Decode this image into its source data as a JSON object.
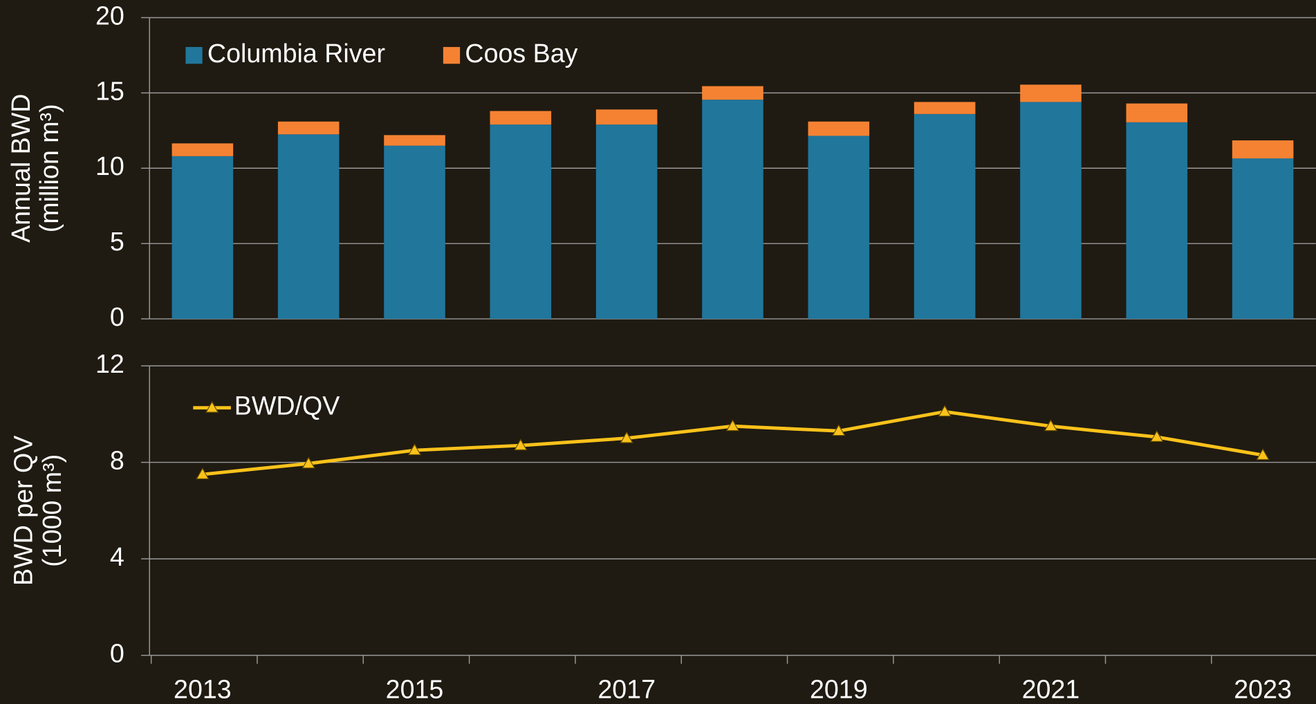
{
  "chart_data": [
    {
      "type": "bar",
      "stacked": true,
      "ylabel": [
        "Annual BWD",
        "(million m³)"
      ],
      "ylim": [
        0,
        20
      ],
      "yticks": [
        0,
        5,
        10,
        15,
        20
      ],
      "grid": true,
      "legend": "top-left",
      "series": [
        {
          "name": "Columbia River",
          "color": "#21769c",
          "values": [
            10.8,
            12.25,
            11.5,
            12.9,
            12.9,
            14.55,
            12.15,
            13.6,
            14.4,
            13.05,
            10.65
          ]
        },
        {
          "name": "Coos Bay",
          "color": "#f58233",
          "values": [
            0.85,
            0.85,
            0.7,
            0.9,
            1.0,
            0.9,
            0.95,
            0.8,
            1.15,
            1.25,
            1.2
          ]
        }
      ]
    },
    {
      "type": "line",
      "ylabel": [
        "BWD per QV",
        "(1000 m³)"
      ],
      "categories": [
        "2013",
        null,
        "2015",
        null,
        "2017",
        null,
        "2019",
        null,
        "2021",
        null,
        "2023"
      ],
      "ylim": [
        0,
        12
      ],
      "yticks": [
        0,
        4,
        8,
        12
      ],
      "grid": true,
      "legend": "top-left",
      "series": [
        {
          "name": "BWD/QV",
          "color": "#fbc21b",
          "values": [
            7.5,
            7.95,
            8.5,
            8.7,
            9.0,
            9.5,
            9.3,
            10.1,
            9.5,
            9.05,
            8.3
          ]
        }
      ]
    }
  ]
}
